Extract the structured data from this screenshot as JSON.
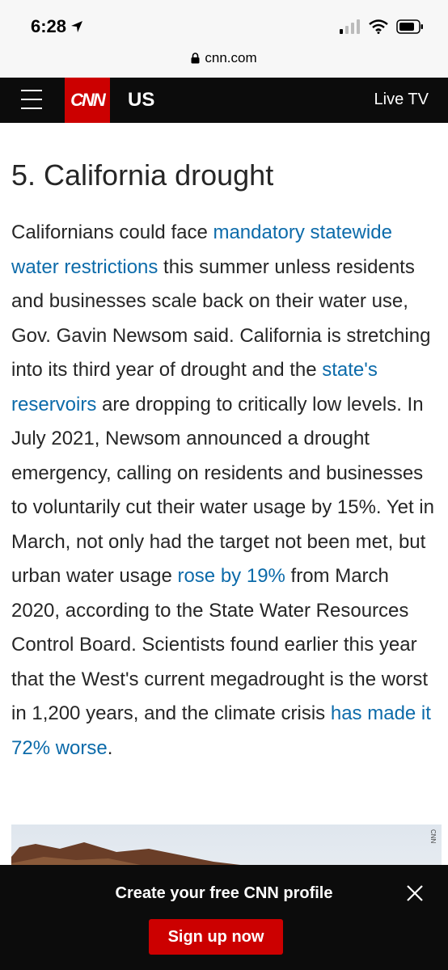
{
  "status_bar": {
    "time": "6:28",
    "icons": [
      "location-arrow-icon",
      "cellular-signal-icon",
      "wifi-icon",
      "battery-icon"
    ]
  },
  "browser": {
    "url": "cnn.com"
  },
  "nav": {
    "logo": "CNN",
    "section": "US",
    "live_tv": "Live TV"
  },
  "article": {
    "headline": "5. California drought",
    "segments": [
      {
        "text": "Californians could face ",
        "link": false
      },
      {
        "text": "mandatory statewide water restrictions",
        "link": true
      },
      {
        "text": " this summer unless residents and businesses scale back on their water use, Gov. Gavin Newsom said. California is stretching into its third year of drought and the ",
        "link": false
      },
      {
        "text": "state's reservoirs",
        "link": true
      },
      {
        "text": " are dropping to critically low levels. In July 2021, Newsom announced a drought emergency, calling on residents and businesses to voluntarily cut their water usage by 15%. Yet in March, not only had the target not been met, but urban water usage ",
        "link": false
      },
      {
        "text": "rose by 19%",
        "link": true
      },
      {
        "text": " from March 2020, according to the State Water Resources Control Board. Scientists found earlier this year that the West's current megadrought is the worst in 1,200 years, and the climate crisis ",
        "link": false
      },
      {
        "text": "has made it 72% worse",
        "link": true
      },
      {
        "text": ".",
        "link": false
      }
    ],
    "image_credit": "CNN"
  },
  "banner": {
    "title": "Create your free CNN profile",
    "button": "Sign up now"
  },
  "colors": {
    "cnn_red": "#cc0000",
    "link_blue": "#0c6baa",
    "nav_black": "#0c0c0c"
  }
}
